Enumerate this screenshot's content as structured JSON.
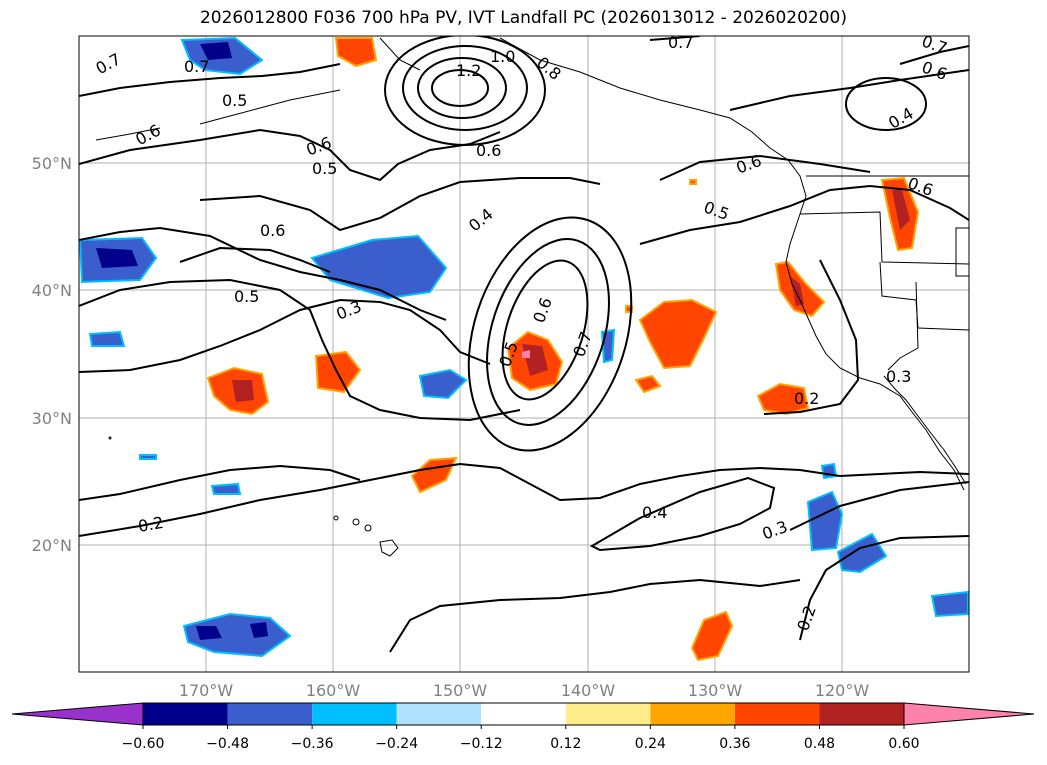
{
  "title": "2026012800 F036 700 hPa PV, IVT Landfall PC (2026013012 - 2026020200)",
  "map": {
    "lon_range": [
      -180,
      -110
    ],
    "lat_range": [
      10,
      60
    ],
    "gridlines": true,
    "lat_labels": [
      "50°N",
      "40°N",
      "30°N",
      "20°N"
    ],
    "lon_labels": [
      "170°W",
      "160°W",
      "150°W",
      "140°W",
      "130°W",
      "120°W"
    ],
    "features": [
      "coastlines",
      "state-borders",
      "hawaiian-islands",
      "aleutian-islands"
    ]
  },
  "chart_data": {
    "type": "contour-map",
    "contour_variable": "700 hPa PV",
    "contour_labels_visible": [
      "0.2",
      "0.3",
      "0.4",
      "0.5",
      "0.6",
      "0.7",
      "0.8",
      "1.0",
      "1.2"
    ],
    "shading_variable": "IVT Landfall PC",
    "colorbar": {
      "orientation": "horizontal",
      "extend": "both",
      "boundaries": [
        -0.6,
        -0.48,
        -0.36,
        -0.24,
        -0.12,
        0.12,
        0.24,
        0.36,
        0.48,
        0.6
      ],
      "tick_labels": [
        "−0.60",
        "−0.48",
        "−0.36",
        "−0.24",
        "−0.12",
        "0.12",
        "0.24",
        "0.36",
        "0.48",
        "0.60"
      ],
      "colors": [
        "#9932cc",
        "#00008b",
        "#3a5fcd",
        "#00bfff",
        "#b0e2ff",
        "#ffffff",
        "#ffec8b",
        "#ffa500",
        "#ff4500",
        "#b22222",
        "#ff82ab"
      ]
    }
  }
}
